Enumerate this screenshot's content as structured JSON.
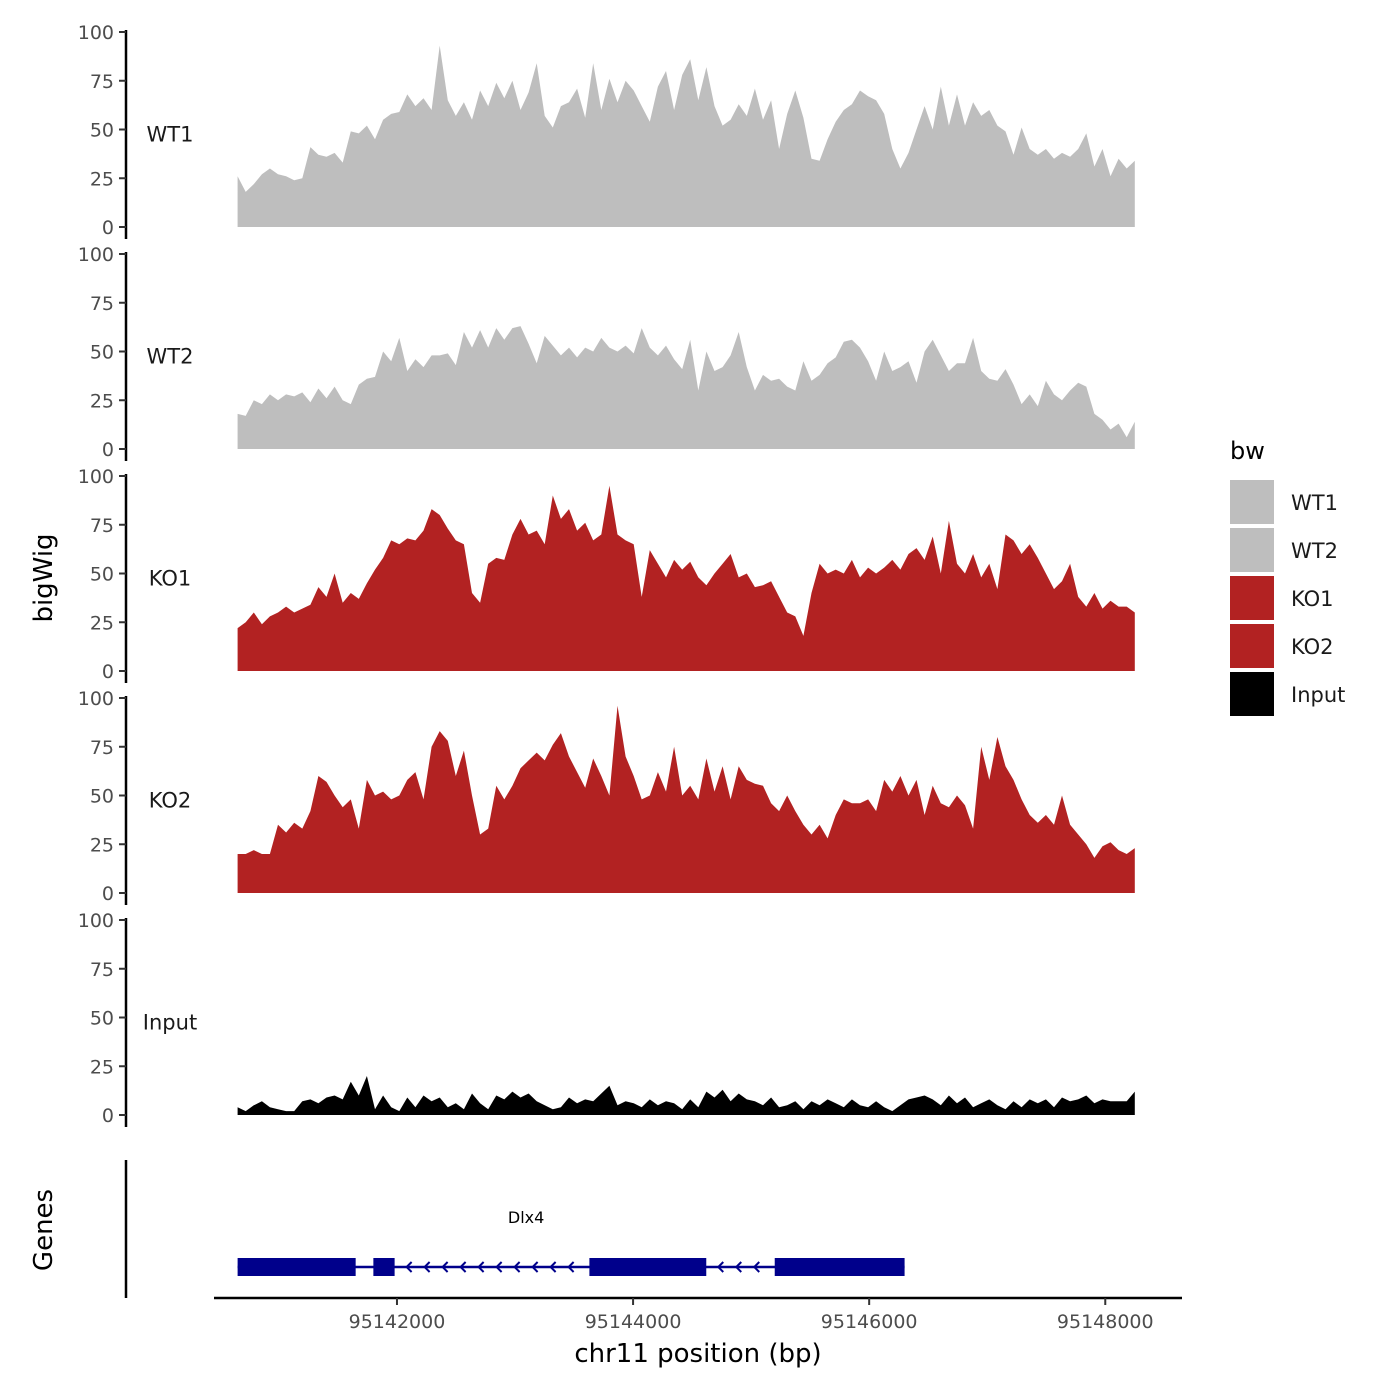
{
  "chart_data": {
    "type": "area",
    "chromosome": "chr11",
    "xlabel": "chr11 position (bp)",
    "ylabel": "bigWig",
    "gene_panel_label": "Genes",
    "xlim": [
      95140450,
      95148650
    ],
    "xticks": [
      95142000,
      95144000,
      95146000,
      95148000
    ],
    "x_tick_labels": [
      "95142000",
      "95144000",
      "95146000",
      "95148000"
    ],
    "ylim": [
      0,
      100
    ],
    "yticks": [
      0,
      25,
      50,
      75,
      100
    ],
    "y_tick_labels": [
      "0",
      "25",
      "50",
      "75",
      "100"
    ],
    "region": [
      95140650,
      95148250
    ],
    "legend": {
      "title": "bw",
      "entries": [
        {
          "label": "WT1",
          "color": "#bebebe"
        },
        {
          "label": "WT2",
          "color": "#bebebe"
        },
        {
          "label": "KO1",
          "color": "#b22222"
        },
        {
          "label": "KO2",
          "color": "#b22222"
        },
        {
          "label": "Input",
          "color": "#000000"
        }
      ]
    },
    "series": [
      {
        "name": "WT1",
        "color": "#bebebe",
        "x_start": 95140650,
        "x_end": 95148250,
        "values": [
          26,
          18,
          22,
          27,
          30,
          27,
          26,
          24,
          25,
          41,
          37,
          36,
          38,
          33,
          49,
          48,
          52,
          45,
          55,
          58,
          59,
          68,
          62,
          66,
          60,
          93,
          65,
          57,
          64,
          55,
          70,
          62,
          74,
          66,
          75,
          60,
          69,
          84,
          57,
          51,
          62,
          64,
          71,
          56,
          84,
          60,
          76,
          64,
          75,
          70,
          62,
          54,
          72,
          80,
          60,
          78,
          86,
          65,
          82,
          62,
          52,
          55,
          63,
          57,
          71,
          55,
          65,
          40,
          58,
          70,
          56,
          35,
          34,
          45,
          54,
          60,
          63,
          70,
          67,
          65,
          58,
          40,
          30,
          38,
          50,
          62,
          50,
          72,
          52,
          68,
          52,
          64,
          57,
          60,
          52,
          49,
          37,
          51,
          40,
          37,
          40,
          35,
          38,
          36,
          40,
          48,
          31,
          40,
          26,
          35,
          30,
          34
        ]
      },
      {
        "name": "WT2",
        "color": "#bebebe",
        "x_start": 95140650,
        "x_end": 95148250,
        "values": [
          18,
          17,
          25,
          23,
          28,
          25,
          28,
          27,
          29,
          24,
          31,
          26,
          32,
          25,
          23,
          33,
          36,
          37,
          50,
          45,
          57,
          40,
          46,
          42,
          48,
          48,
          49,
          43,
          60,
          52,
          61,
          52,
          62,
          56,
          62,
          63,
          54,
          44,
          58,
          53,
          48,
          52,
          47,
          52,
          50,
          57,
          52,
          50,
          53,
          49,
          62,
          52,
          48,
          53,
          46,
          41,
          56,
          30,
          50,
          40,
          42,
          48,
          60,
          42,
          30,
          38,
          35,
          36,
          32,
          30,
          45,
          35,
          38,
          44,
          47,
          55,
          56,
          52,
          45,
          35,
          50,
          40,
          42,
          45,
          34,
          50,
          56,
          48,
          40,
          44,
          44,
          57,
          40,
          36,
          35,
          41,
          33,
          23,
          28,
          22,
          35,
          28,
          25,
          30,
          34,
          32,
          18,
          15,
          10,
          13,
          6,
          14
        ]
      },
      {
        "name": "KO1",
        "color": "#b22222",
        "x_start": 95140650,
        "x_end": 95148250,
        "values": [
          22,
          25,
          30,
          24,
          28,
          30,
          33,
          30,
          32,
          34,
          43,
          38,
          50,
          35,
          40,
          37,
          45,
          52,
          58,
          67,
          65,
          68,
          67,
          72,
          83,
          80,
          73,
          67,
          65,
          40,
          35,
          55,
          58,
          57,
          70,
          78,
          70,
          72,
          65,
          90,
          78,
          83,
          72,
          76,
          67,
          70,
          95,
          70,
          67,
          65,
          38,
          62,
          55,
          48,
          57,
          52,
          56,
          48,
          44,
          50,
          55,
          60,
          48,
          50,
          43,
          44,
          46,
          38,
          30,
          28,
          18,
          40,
          55,
          50,
          52,
          50,
          57,
          48,
          53,
          50,
          53,
          57,
          52,
          60,
          63,
          57,
          69,
          50,
          77,
          55,
          50,
          60,
          48,
          55,
          42,
          70,
          67,
          60,
          65,
          58,
          50,
          42,
          46,
          55,
          38,
          33,
          40,
          32,
          36,
          33,
          33,
          30
        ]
      },
      {
        "name": "KO2",
        "color": "#b22222",
        "x_start": 95140650,
        "x_end": 95148250,
        "values": [
          20,
          20,
          22,
          20,
          20,
          35,
          31,
          36,
          33,
          42,
          60,
          57,
          50,
          44,
          48,
          33,
          58,
          50,
          52,
          48,
          50,
          58,
          62,
          48,
          75,
          83,
          78,
          60,
          73,
          50,
          30,
          33,
          55,
          48,
          55,
          64,
          68,
          72,
          68,
          76,
          82,
          70,
          62,
          54,
          69,
          60,
          50,
          96,
          70,
          60,
          48,
          50,
          62,
          52,
          75,
          50,
          55,
          48,
          69,
          52,
          65,
          48,
          65,
          58,
          56,
          55,
          46,
          42,
          50,
          42,
          35,
          30,
          35,
          28,
          40,
          48,
          46,
          46,
          48,
          42,
          58,
          52,
          60,
          50,
          58,
          40,
          55,
          46,
          44,
          50,
          45,
          33,
          75,
          58,
          80,
          65,
          58,
          48,
          40,
          36,
          40,
          35,
          50,
          35,
          30,
          25,
          18,
          24,
          26,
          22,
          20,
          23
        ]
      },
      {
        "name": "Input",
        "color": "#000000",
        "x_start": 95140650,
        "x_end": 95148250,
        "values": [
          4,
          2,
          5,
          7,
          4,
          3,
          2,
          2,
          7,
          8,
          6,
          9,
          10,
          8,
          17,
          10,
          20,
          3,
          10,
          4,
          2,
          9,
          4,
          10,
          7,
          9,
          4,
          6,
          3,
          11,
          6,
          3,
          10,
          8,
          12,
          9,
          11,
          7,
          5,
          3,
          4,
          9,
          6,
          8,
          7,
          11,
          15,
          5,
          7,
          6,
          4,
          8,
          5,
          7,
          6,
          3,
          8,
          4,
          12,
          9,
          13,
          7,
          11,
          8,
          7,
          5,
          9,
          4,
          5,
          7,
          3,
          7,
          5,
          8,
          6,
          4,
          8,
          5,
          4,
          7,
          4,
          2,
          5,
          8,
          9,
          10,
          8,
          5,
          10,
          6,
          9,
          4,
          6,
          8,
          5,
          3,
          7,
          4,
          8,
          6,
          8,
          4,
          9,
          7,
          8,
          10,
          6,
          8,
          7,
          7,
          7,
          12
        ]
      }
    ],
    "genes": [
      {
        "name": "Dlx4",
        "color": "#00008b",
        "strand": "-",
        "start": 95140650,
        "end": 95146300,
        "exons": [
          {
            "start": 95140650,
            "end": 95141650
          },
          {
            "start": 95141800,
            "end": 95141980
          },
          {
            "start": 95143630,
            "end": 95144620
          },
          {
            "start": 95145200,
            "end": 95146300
          }
        ]
      }
    ]
  }
}
